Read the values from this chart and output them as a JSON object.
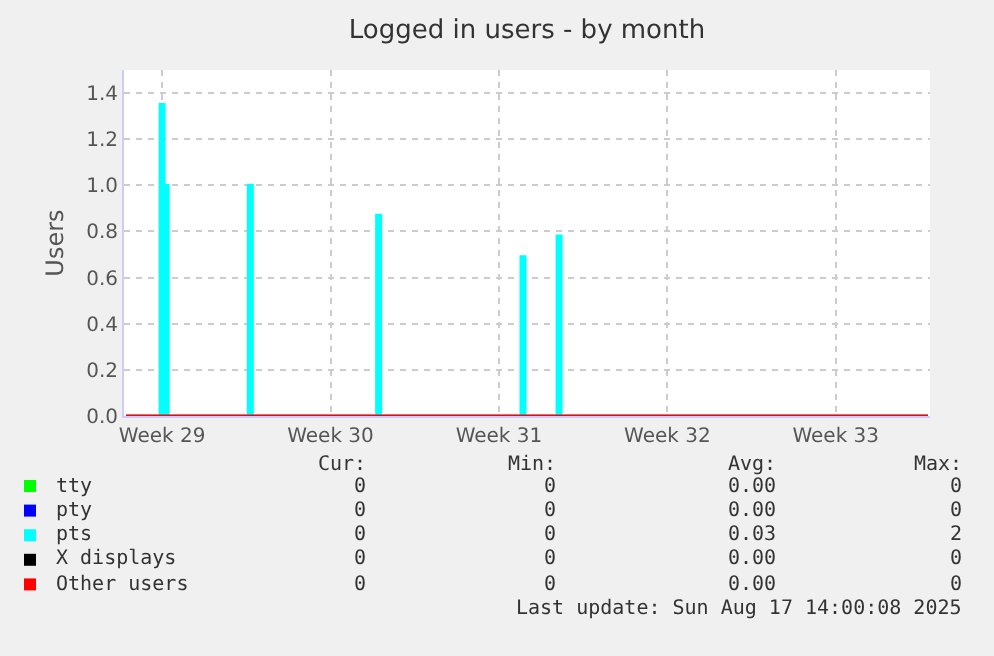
{
  "chart_data": {
    "type": "line",
    "title": "Logged in users - by month",
    "ylabel": "Users",
    "categories": [
      null,
      null,
      null,
      null,
      null,
      null,
      null,
      null,
      null,
      "Week 29",
      null,
      null,
      null,
      null,
      null,
      null,
      null,
      null,
      null,
      null,
      null,
      null,
      null,
      null,
      null,
      null,
      null,
      null,
      null,
      null,
      null,
      null,
      null,
      null,
      null,
      null,
      null,
      null,
      null,
      null,
      null,
      null,
      null,
      null,
      null,
      null,
      null,
      null,
      null,
      null,
      null,
      "Week 30",
      null,
      null,
      null,
      null,
      null,
      null,
      null,
      null,
      null,
      null,
      null,
      null,
      null,
      null,
      null,
      null,
      null,
      null,
      null,
      null,
      null,
      null,
      null,
      null,
      null,
      null,
      null,
      null,
      null,
      null,
      null,
      null,
      null,
      null,
      null,
      null,
      null,
      null,
      null,
      null,
      null,
      "Week 31",
      null,
      null,
      null,
      null,
      null,
      null,
      null,
      null,
      null,
      null,
      null,
      null,
      null,
      null,
      null,
      null,
      null,
      null,
      null,
      null,
      null,
      null,
      null,
      null,
      null,
      null,
      null,
      null,
      null,
      null,
      null,
      null,
      null,
      null,
      null,
      null,
      null,
      null,
      null,
      null,
      null,
      "Week 32",
      null,
      null,
      null,
      null,
      null,
      null,
      null,
      null,
      null,
      null,
      null,
      null,
      null,
      null,
      null,
      null,
      null,
      null,
      null,
      null,
      null,
      null,
      null,
      null,
      null,
      null,
      null,
      null,
      null,
      null,
      null,
      null,
      null,
      null,
      null,
      null,
      null,
      null,
      null,
      null,
      null,
      "Week 33",
      null,
      null,
      null,
      null,
      null,
      null,
      null,
      null,
      null,
      null,
      null,
      null,
      null,
      null,
      null,
      null,
      null,
      null,
      null,
      null,
      null,
      null,
      null
    ],
    "ylim": [
      0,
      1.5
    ],
    "yticks": [
      {
        "value": 0,
        "label": "0.0"
      },
      {
        "value": 0.2,
        "label": "0.2"
      },
      {
        "value": 0.4,
        "label": "0.4"
      },
      {
        "value": 0.6,
        "label": "0.6"
      },
      {
        "value": 0.8,
        "label": "0.8"
      },
      {
        "value": 1.0,
        "label": "1.0"
      },
      {
        "value": 1.2,
        "label": "1.2"
      },
      {
        "value": 1.4,
        "label": "1.4"
      }
    ],
    "grid": true,
    "legend": "bottom left",
    "marker": "none",
    "series": [
      {
        "name": "tty",
        "color": "#00ff00",
        "values": [
          null,
          null,
          null,
          null,
          null,
          null,
          null,
          null,
          null,
          null,
          null,
          null,
          null,
          null,
          null,
          null,
          null,
          null,
          null,
          null,
          null,
          null,
          null,
          null,
          null,
          null,
          null,
          null,
          null,
          null,
          null,
          null,
          null,
          null,
          null,
          null,
          null,
          null,
          null,
          null,
          null,
          null,
          null,
          null,
          null,
          null,
          null,
          null,
          null,
          null,
          null,
          null,
          null,
          null,
          null,
          null,
          null,
          null,
          null,
          null,
          null,
          null,
          null,
          null,
          null,
          null,
          null,
          null,
          null,
          null,
          null,
          null,
          null,
          null,
          null,
          null,
          null,
          null,
          null,
          null,
          null,
          null,
          null,
          null,
          null,
          null,
          null,
          null,
          null,
          null,
          null,
          null,
          null,
          null,
          null,
          null,
          null,
          null,
          null,
          null,
          null,
          null,
          null,
          null,
          null,
          null,
          null,
          null,
          null,
          null,
          null,
          null,
          null,
          null,
          null,
          null,
          null,
          null,
          null,
          null,
          null,
          null,
          null,
          null,
          null,
          null,
          null,
          null,
          null,
          null,
          null,
          null,
          null,
          null,
          null,
          null,
          null,
          null,
          null,
          null,
          null,
          null,
          null,
          null,
          null,
          null,
          null,
          null,
          null,
          null,
          null,
          null,
          null,
          null,
          null,
          null,
          null,
          null,
          null,
          null,
          null,
          null,
          null,
          null,
          null,
          null,
          null,
          null,
          null,
          null,
          null,
          null,
          null,
          null,
          null,
          null,
          null,
          null,
          null,
          null,
          null,
          null,
          null,
          null,
          null,
          null,
          null,
          null,
          null,
          null,
          null,
          null,
          null,
          null,
          null,
          null,
          null,
          null,
          null,
          null,
          null
        ]
      },
      {
        "name": "pty",
        "color": "#0000ff",
        "values": [
          null,
          null,
          null,
          null,
          null,
          null,
          null,
          null,
          null,
          null,
          null,
          null,
          null,
          null,
          null,
          null,
          null,
          null,
          null,
          null,
          null,
          null,
          null,
          null,
          null,
          null,
          null,
          null,
          null,
          null,
          null,
          null,
          null,
          null,
          null,
          null,
          null,
          null,
          null,
          null,
          null,
          null,
          null,
          null,
          null,
          null,
          null,
          null,
          null,
          null,
          null,
          null,
          null,
          null,
          null,
          null,
          null,
          null,
          null,
          null,
          null,
          null,
          null,
          null,
          null,
          null,
          null,
          null,
          null,
          null,
          null,
          null,
          null,
          null,
          null,
          null,
          null,
          null,
          null,
          null,
          null,
          null,
          null,
          null,
          null,
          null,
          null,
          null,
          null,
          null,
          null,
          null,
          null,
          null,
          null,
          null,
          null,
          null,
          null,
          null,
          null,
          null,
          null,
          null,
          null,
          null,
          null,
          null,
          null,
          null,
          null,
          null,
          null,
          null,
          null,
          null,
          null,
          null,
          null,
          null,
          null,
          null,
          null,
          null,
          null,
          null,
          null,
          null,
          null,
          null,
          null,
          null,
          null,
          null,
          null,
          null,
          null,
          null,
          null,
          null,
          null,
          null,
          null,
          null,
          null,
          null,
          null,
          null,
          null,
          null,
          null,
          null,
          null,
          null,
          null,
          null,
          null,
          null,
          null,
          null,
          null,
          null,
          null,
          null,
          null,
          null,
          null,
          null,
          null,
          null,
          null,
          null,
          null,
          null,
          null,
          null,
          null,
          null,
          null,
          null,
          null,
          null,
          null,
          null,
          null,
          null,
          null,
          null,
          null,
          null,
          null,
          null,
          null,
          null,
          null,
          null,
          null,
          null,
          null,
          null,
          null
        ]
      },
      {
        "name": "pts",
        "color": "#00ffff",
        "type": "area",
        "values": [
          0,
          0,
          0,
          0,
          0,
          0,
          0,
          0,
          0,
          1.35,
          1.0,
          0,
          0,
          0,
          0,
          0,
          0,
          0,
          0,
          0,
          0,
          0,
          0,
          0,
          0,
          0,
          0,
          0,
          0,
          0,
          0,
          1.0,
          0,
          0,
          0,
          0,
          0,
          0,
          0,
          0,
          0,
          0,
          0,
          0,
          0,
          0,
          0,
          0,
          0,
          0,
          0,
          0,
          0,
          0,
          0,
          0,
          0,
          0,
          0,
          0,
          0,
          0,
          0,
          0.87,
          0,
          0,
          0,
          0,
          0,
          0,
          0,
          0,
          0,
          0,
          0,
          0,
          0,
          0,
          0,
          0,
          0,
          0,
          0,
          0,
          0,
          0,
          0,
          0,
          0,
          0,
          0,
          0,
          0,
          0,
          0,
          0,
          0,
          0,
          0,
          0.69,
          0,
          0,
          0,
          0,
          0,
          0,
          0,
          0,
          0.78,
          0,
          0,
          0,
          0,
          0,
          0,
          0,
          0,
          0,
          0,
          0,
          0,
          0,
          0,
          0,
          0,
          0,
          0,
          0,
          0,
          0,
          0,
          0,
          0,
          0,
          0,
          0,
          0,
          0,
          0,
          0,
          0,
          0,
          0,
          0,
          0,
          0,
          0,
          0,
          0,
          0,
          0,
          0,
          0,
          0,
          0,
          0,
          0,
          0,
          0,
          0,
          0,
          0,
          0,
          0,
          0,
          0,
          0,
          0,
          0,
          0,
          0,
          0,
          0,
          0,
          0,
          0,
          0,
          0,
          0,
          0,
          0,
          0,
          0,
          0,
          0,
          0,
          0,
          0,
          0,
          0,
          0,
          0,
          0,
          0,
          0,
          0,
          0,
          0,
          0,
          0,
          0
        ]
      },
      {
        "name": "X displays",
        "color": "#000000",
        "values": [
          null,
          null,
          null,
          null,
          null,
          null,
          null,
          null,
          null,
          null,
          null,
          null,
          null,
          null,
          null,
          null,
          null,
          null,
          null,
          null,
          null,
          null,
          null,
          null,
          null,
          null,
          null,
          null,
          null,
          null,
          null,
          null,
          null,
          null,
          null,
          null,
          null,
          null,
          null,
          null,
          null,
          null,
          null,
          null,
          null,
          null,
          null,
          null,
          null,
          null,
          null,
          null,
          null,
          null,
          null,
          null,
          null,
          null,
          null,
          null,
          null,
          null,
          null,
          null,
          null,
          null,
          null,
          null,
          null,
          null,
          null,
          null,
          null,
          null,
          null,
          null,
          null,
          null,
          null,
          null,
          null,
          null,
          null,
          null,
          null,
          null,
          null,
          null,
          null,
          null,
          null,
          null,
          null,
          null,
          null,
          null,
          null,
          null,
          null,
          null,
          null,
          null,
          null,
          null,
          null,
          null,
          null,
          null,
          null,
          null,
          null,
          null,
          null,
          null,
          null,
          null,
          null,
          null,
          null,
          null,
          null,
          null,
          null,
          null,
          null,
          null,
          null,
          null,
          null,
          null,
          null,
          null,
          null,
          null,
          null,
          null,
          null,
          null,
          null,
          null,
          null,
          null,
          null,
          null,
          null,
          null,
          null,
          null,
          null,
          null,
          null,
          null,
          null,
          null,
          null,
          null,
          null,
          null,
          null,
          null,
          null,
          null,
          null,
          null,
          null,
          null,
          null,
          null,
          null,
          null,
          null,
          null,
          null,
          null,
          null,
          null,
          null,
          null,
          null,
          null,
          null,
          null,
          null,
          null,
          null,
          null,
          null,
          null,
          null,
          null,
          null,
          null,
          null,
          null,
          null,
          null,
          null,
          null,
          null,
          null,
          null
        ]
      },
      {
        "name": "Other users",
        "color": "#ff0000",
        "values": [
          0,
          0,
          0,
          0,
          0,
          0,
          0,
          0,
          0,
          0,
          0,
          0,
          0,
          0,
          0,
          0,
          0,
          0,
          0,
          0,
          0,
          0,
          0,
          0,
          0,
          0,
          0,
          0,
          0,
          0,
          0,
          0,
          0,
          0,
          0,
          0,
          0,
          0,
          0,
          0,
          0,
          0,
          0,
          0,
          0,
          0,
          0,
          0,
          0,
          0,
          0,
          0,
          0,
          0,
          0,
          0,
          0,
          0,
          0,
          0,
          0,
          0,
          0,
          0,
          0,
          0,
          0,
          0,
          0,
          0,
          0,
          0,
          0,
          0,
          0,
          0,
          0,
          0,
          0,
          0,
          0,
          0,
          0,
          0,
          0,
          0,
          0,
          0,
          0,
          0,
          0,
          0,
          0,
          0,
          0,
          0,
          0,
          0,
          0,
          0,
          0,
          0,
          0,
          0,
          0,
          0,
          0,
          0,
          0,
          0,
          0,
          0,
          0,
          0,
          0,
          0,
          0,
          0,
          0,
          0,
          0,
          0,
          0,
          0,
          0,
          0,
          0,
          0,
          0,
          0,
          0,
          0,
          0,
          0,
          0,
          0,
          0,
          0,
          0,
          0,
          0,
          0,
          0,
          0,
          0,
          0,
          0,
          0,
          0,
          0,
          0,
          0,
          0,
          0,
          0,
          0,
          0,
          0,
          0,
          0,
          0,
          0,
          0,
          0,
          0,
          0,
          0,
          0,
          0,
          0,
          0,
          0,
          0,
          0,
          0,
          0,
          0,
          0,
          0,
          0,
          0,
          0,
          0,
          0,
          0,
          0,
          0,
          0,
          0,
          0,
          0,
          0,
          0,
          0,
          0,
          0,
          0,
          0,
          0,
          0,
          0
        ]
      }
    ],
    "annotations": [
      "Cur:",
      "Min:",
      "Avg:",
      "Max:",
      "0",
      "0",
      "0.00",
      "0",
      "0",
      "0",
      "0.00",
      "0",
      "0",
      "0",
      "0.03",
      "2",
      "0",
      "0",
      "0.00",
      "0",
      "0",
      "0",
      "0.00",
      "0",
      "Last update: Sun Aug 17 14:00:08 2025"
    ]
  }
}
